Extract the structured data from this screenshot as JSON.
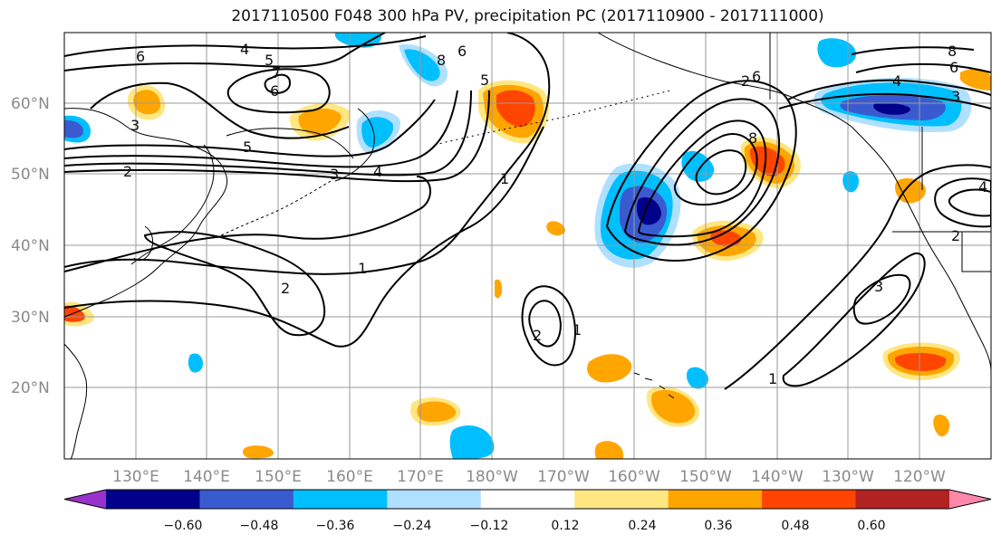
{
  "title": "2017110500 F048 300 hPa PV, precipitation PC (2017110900 - 2017111000)",
  "lat_labels": [
    "60°N",
    "50°N",
    "40°N",
    "30°N",
    "20°N"
  ],
  "lon_labels": [
    "130°E",
    "140°E",
    "150°E",
    "160°E",
    "170°E",
    "180°W",
    "170°W",
    "160°W",
    "150°W",
    "140°W",
    "130°W",
    "120°W"
  ],
  "colorbar": {
    "ticks": [
      "−0.60",
      "−0.48",
      "−0.36",
      "−0.24",
      "−0.12",
      "0.12",
      "0.24",
      "0.36",
      "0.48",
      "0.60"
    ],
    "colors": [
      "#9932cc",
      "#00008b",
      "#3a5bd0",
      "#00bfff",
      "#b0e0ff",
      "#ffffff",
      "#ffe680",
      "#ffa500",
      "#ff4500",
      "#b22222",
      "#ff88aa"
    ]
  },
  "contour_labels": [
    {
      "text": "6"
    },
    {
      "text": "4"
    },
    {
      "text": "5"
    },
    {
      "text": "7"
    },
    {
      "text": "6"
    },
    {
      "text": "3"
    },
    {
      "text": "5"
    },
    {
      "text": "2"
    },
    {
      "text": "3"
    },
    {
      "text": "4"
    },
    {
      "text": "1"
    },
    {
      "text": "2"
    },
    {
      "text": "2"
    },
    {
      "text": "1"
    },
    {
      "text": "1"
    },
    {
      "text": "6"
    },
    {
      "text": "8"
    },
    {
      "text": "5"
    },
    {
      "text": "2"
    },
    {
      "text": "3"
    },
    {
      "text": "1"
    },
    {
      "text": "4"
    },
    {
      "text": "6"
    },
    {
      "text": "8"
    },
    {
      "text": "3"
    },
    {
      "text": "2"
    },
    {
      "text": "4"
    },
    {
      "text": "8"
    },
    {
      "text": "6"
    }
  ]
}
